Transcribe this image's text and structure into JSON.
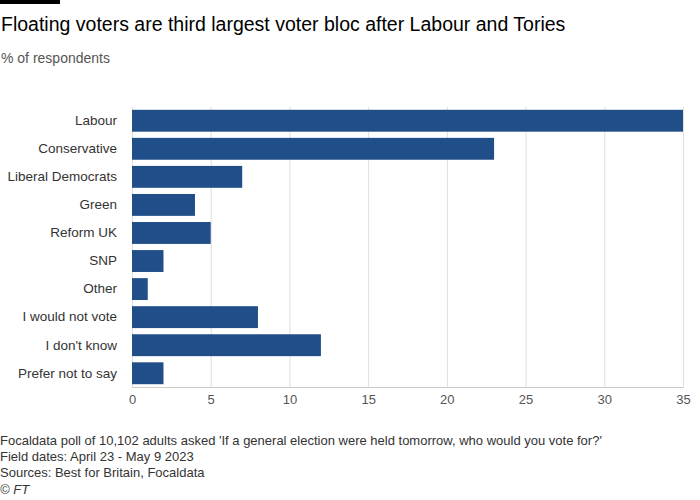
{
  "chart_data": {
    "type": "bar",
    "orientation": "horizontal",
    "title": "Floating voters are third largest voter bloc after Labour and Tories",
    "subtitle": "% of respondents",
    "categories": [
      "Labour",
      "Conservative",
      "Liberal Democrats",
      "Green",
      "Reform UK",
      "SNP",
      "Other",
      "I would not vote",
      "I don't know",
      "Prefer not to say"
    ],
    "values": [
      35,
      23,
      7,
      4,
      5,
      2,
      1,
      8,
      12,
      2
    ],
    "color": "#1f4e89",
    "xlim": [
      0,
      35
    ],
    "xticks": [
      0,
      5,
      10,
      15,
      20,
      25,
      30,
      35
    ],
    "grid": true,
    "footnotes": [
      "Focaldata poll of 10,102 adults asked 'If a general election were held tomorrow, who would you vote for?'",
      "Field dates: April 23 - May 9 2023",
      "Sources: Best for Britain, Focaldata",
      "© FT"
    ]
  }
}
